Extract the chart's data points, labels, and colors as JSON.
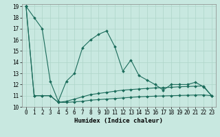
{
  "xlabel": "Humidex (Indice chaleur)",
  "x": [
    0,
    1,
    2,
    3,
    4,
    5,
    6,
    7,
    8,
    9,
    10,
    11,
    12,
    13,
    14,
    15,
    16,
    17,
    18,
    19,
    20,
    21,
    22,
    23
  ],
  "line1": [
    19,
    18,
    17,
    12.3,
    10.5,
    12.3,
    13.0,
    15.3,
    16.0,
    16.5,
    16.8,
    15.4,
    13.2,
    14.2,
    12.8,
    12.4,
    12.0,
    11.5,
    12.0,
    12.0,
    12.0,
    12.2,
    11.8,
    11.0
  ],
  "line2": [
    19,
    11.0,
    11.0,
    11.0,
    10.4,
    10.5,
    10.7,
    10.9,
    11.1,
    11.2,
    11.3,
    11.4,
    11.5,
    11.55,
    11.6,
    11.65,
    11.7,
    11.72,
    11.75,
    11.8,
    11.82,
    11.85,
    11.87,
    11.0
  ],
  "line3": [
    19,
    11.0,
    11.0,
    11.0,
    10.4,
    10.4,
    10.45,
    10.5,
    10.6,
    10.65,
    10.7,
    10.75,
    10.8,
    10.85,
    10.9,
    10.93,
    10.96,
    10.98,
    11.0,
    11.02,
    11.04,
    11.06,
    11.07,
    11.0
  ],
  "line_color": "#1a6b5a",
  "bg_color": "#c8e8e0",
  "grid_color": "#aed4c8",
  "ylim": [
    10,
    19
  ],
  "xlim": [
    -0.5,
    23.5
  ],
  "yticks": [
    10,
    11,
    12,
    13,
    14,
    15,
    16,
    17,
    18,
    19
  ],
  "xticks": [
    0,
    1,
    2,
    3,
    4,
    5,
    6,
    7,
    8,
    9,
    10,
    11,
    12,
    13,
    14,
    15,
    16,
    17,
    18,
    19,
    20,
    21,
    22,
    23
  ],
  "tick_fontsize": 5.5,
  "label_fontsize": 6.5
}
